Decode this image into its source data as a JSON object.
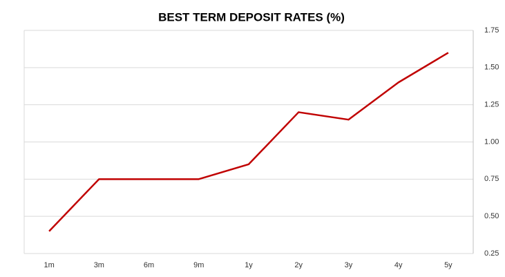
{
  "chart_data": {
    "type": "line",
    "title": "BEST TERM DEPOSIT RATES (%)",
    "categories": [
      "1m",
      "3m",
      "6m",
      "9m",
      "1y",
      "2y",
      "3y",
      "4y",
      "5y"
    ],
    "series": [
      {
        "name": "Best term deposit rate",
        "color": "#c00000",
        "values": [
          0.4,
          0.75,
          0.75,
          0.75,
          0.85,
          1.2,
          1.15,
          1.4,
          1.6
        ]
      }
    ],
    "ylim": [
      0.25,
      1.75
    ],
    "yticks": [
      0.25,
      {
        "value": 0.5,
        "label": "0.50"
      },
      0.75,
      {
        "value": 1,
        "label": "1.00"
      },
      1.25,
      {
        "value": 1.5,
        "label": "1.50"
      },
      1.75
    ],
    "grid": true
  }
}
